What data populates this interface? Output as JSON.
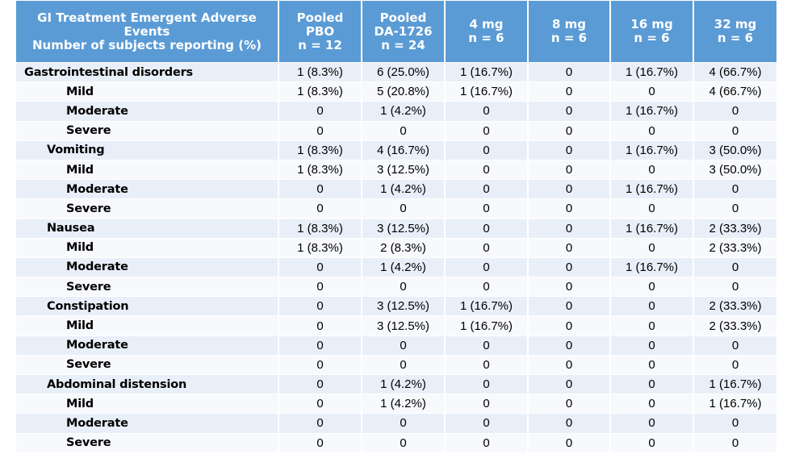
{
  "table": {
    "header": {
      "title_line1": "GI Treatment Emergent Adverse Events",
      "title_line2": "Number of subjects reporting (%)",
      "columns": [
        {
          "line1": "Pooled",
          "line2": "PBO",
          "line3": "n = 12"
        },
        {
          "line1": "Pooled",
          "line2": "DA-1726",
          "line3": "n = 24"
        },
        {
          "line1": "4 mg",
          "line2": "n = 6"
        },
        {
          "line1": "8 mg",
          "line2": "n = 6"
        },
        {
          "line1": "16 mg",
          "line2": "n = 6"
        },
        {
          "line1": "32 mg",
          "line2": "n = 6"
        }
      ]
    },
    "rows": [
      {
        "label": "Gastrointestinal disorders",
        "level": 0,
        "values": [
          "1 (8.3%)",
          "6 (25.0%)",
          "1 (16.7%)",
          "0",
          "1 (16.7%)",
          "4 (66.7%)"
        ]
      },
      {
        "label": "Mild",
        "level": 2,
        "values": [
          "1 (8.3%)",
          "5 (20.8%)",
          "1 (16.7%)",
          "0",
          "0",
          "4 (66.7%)"
        ]
      },
      {
        "label": "Moderate",
        "level": 2,
        "values": [
          "0",
          "1 (4.2%)",
          "0",
          "0",
          "1 (16.7%)",
          "0"
        ]
      },
      {
        "label": "Severe",
        "level": 2,
        "values": [
          "0",
          "0",
          "0",
          "0",
          "0",
          "0"
        ]
      },
      {
        "label": "Vomiting",
        "level": 1,
        "values": [
          "1 (8.3%)",
          "4 (16.7%)",
          "0",
          "0",
          "1 (16.7%)",
          "3 (50.0%)"
        ]
      },
      {
        "label": "Mild",
        "level": 2,
        "values": [
          "1 (8.3%)",
          "3 (12.5%)",
          "0",
          "0",
          "0",
          "3 (50.0%)"
        ]
      },
      {
        "label": "Moderate",
        "level": 2,
        "values": [
          "0",
          "1 (4.2%)",
          "0",
          "0",
          "1 (16.7%)",
          "0"
        ]
      },
      {
        "label": "Severe",
        "level": 2,
        "values": [
          "0",
          "0",
          "0",
          "0",
          "0",
          "0"
        ]
      },
      {
        "label": "Nausea",
        "level": 1,
        "values": [
          "1 (8.3%)",
          "3 (12.5%)",
          "0",
          "0",
          "1 (16.7%)",
          "2 (33.3%)"
        ]
      },
      {
        "label": "Mild",
        "level": 2,
        "values": [
          "1 (8.3%)",
          "2 (8.3%)",
          "0",
          "0",
          "0",
          "2 (33.3%)"
        ]
      },
      {
        "label": "Moderate",
        "level": 2,
        "values": [
          "0",
          "1 (4.2%)",
          "0",
          "0",
          "1 (16.7%)",
          "0"
        ]
      },
      {
        "label": "Severe",
        "level": 2,
        "values": [
          "0",
          "0",
          "0",
          "0",
          "0",
          "0"
        ]
      },
      {
        "label": "Constipation",
        "level": 1,
        "values": [
          "0",
          "3 (12.5%)",
          "1 (16.7%)",
          "0",
          "0",
          "2 (33.3%)"
        ]
      },
      {
        "label": "Mild",
        "level": 2,
        "values": [
          "0",
          "3 (12.5%)",
          "1 (16.7%)",
          "0",
          "0",
          "2 (33.3%)"
        ]
      },
      {
        "label": "Moderate",
        "level": 2,
        "values": [
          "0",
          "0",
          "0",
          "0",
          "0",
          "0"
        ]
      },
      {
        "label": "Severe",
        "level": 2,
        "values": [
          "0",
          "0",
          "0",
          "0",
          "0",
          "0"
        ]
      },
      {
        "label": "Abdominal distension",
        "level": 1,
        "values": [
          "0",
          "1 (4.2%)",
          "0",
          "0",
          "0",
          "1 (16.7%)"
        ]
      },
      {
        "label": "Mild",
        "level": 2,
        "values": [
          "0",
          "1 (4.2%)",
          "0",
          "0",
          "0",
          "1 (16.7%)"
        ]
      },
      {
        "label": "Moderate",
        "level": 2,
        "values": [
          "0",
          "0",
          "0",
          "0",
          "0",
          "0"
        ]
      },
      {
        "label": "Severe",
        "level": 2,
        "values": [
          "0",
          "0",
          "0",
          "0",
          "0",
          "0"
        ]
      }
    ]
  }
}
